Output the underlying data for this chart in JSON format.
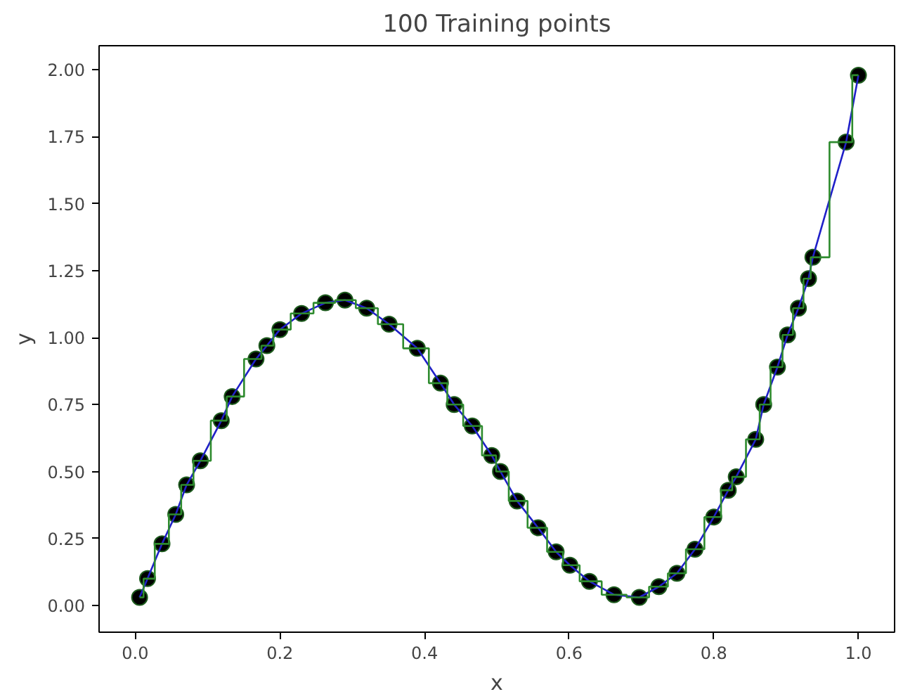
{
  "chart_data": {
    "type": "scatter",
    "title": "100 Training points",
    "xlabel": "x",
    "ylabel": "y",
    "xlim": [
      -0.05,
      1.05
    ],
    "ylim": [
      -0.1,
      2.09
    ],
    "xticks": [
      {
        "value": 0,
        "label": "0.0"
      },
      0.2,
      0.4,
      0.6,
      0.8,
      {
        "value": 1,
        "label": "1.0"
      }
    ],
    "yticks": [
      {
        "value": 0,
        "label": "0.00"
      },
      0.25,
      {
        "value": 0.5,
        "label": "0.50"
      },
      0.75,
      {
        "value": 1,
        "label": "1.00"
      },
      1.25,
      {
        "value": 1.5,
        "label": "1.50"
      },
      1.75,
      {
        "value": 2,
        "label": "2.00"
      }
    ],
    "grid": false,
    "x": [
      0.006,
      0.017,
      0.037,
      0.056,
      0.071,
      0.09,
      0.119,
      0.134,
      0.167,
      0.182,
      0.2,
      0.23,
      0.263,
      0.29,
      0.32,
      0.351,
      0.39,
      0.422,
      0.441,
      0.466,
      0.493,
      0.505,
      0.528,
      0.557,
      0.582,
      0.601,
      0.628,
      0.662,
      0.697,
      0.724,
      0.749,
      0.774,
      0.8,
      0.82,
      0.831,
      0.858,
      0.869,
      0.888,
      0.902,
      0.917,
      0.931,
      0.937,
      0.983,
      1.0
    ],
    "series": [
      {
        "marker": "circle",
        "color": "#000000",
        "values": [
          0.03,
          0.1,
          0.23,
          0.34,
          0.45,
          0.54,
          0.69,
          0.78,
          0.92,
          0.97,
          1.03,
          1.09,
          1.13,
          1.14,
          1.11,
          1.05,
          0.96,
          0.83,
          0.75,
          0.67,
          0.56,
          0.5,
          0.39,
          0.29,
          0.2,
          0.15,
          0.09,
          0.04,
          0.03,
          0.07,
          0.12,
          0.21,
          0.33,
          0.43,
          0.48,
          0.62,
          0.75,
          0.89,
          1.01,
          1.11,
          1.22,
          1.3,
          1.73,
          1.98
        ]
      },
      {
        "type": "line",
        "color": "#2020c8",
        "values": [
          0.03,
          0.1,
          0.23,
          0.34,
          0.45,
          0.54,
          0.69,
          0.78,
          0.92,
          0.97,
          1.03,
          1.09,
          1.13,
          1.14,
          1.11,
          1.05,
          0.96,
          0.83,
          0.75,
          0.67,
          0.56,
          0.5,
          0.39,
          0.29,
          0.2,
          0.15,
          0.09,
          0.04,
          0.03,
          0.07,
          0.12,
          0.21,
          0.33,
          0.43,
          0.48,
          0.62,
          0.75,
          0.89,
          1.01,
          1.11,
          1.22,
          1.3,
          1.73,
          1.98
        ]
      },
      {
        "type": "step",
        "color": "#2e8b2e",
        "values": [
          0.03,
          0.1,
          0.23,
          0.34,
          0.45,
          0.54,
          0.69,
          0.78,
          0.92,
          0.97,
          1.03,
          1.09,
          1.13,
          1.14,
          1.11,
          1.05,
          0.96,
          0.83,
          0.75,
          0.67,
          0.56,
          0.5,
          0.39,
          0.29,
          0.2,
          0.15,
          0.09,
          0.04,
          0.03,
          0.07,
          0.12,
          0.21,
          0.33,
          0.43,
          0.48,
          0.62,
          0.75,
          0.89,
          1.01,
          1.11,
          1.22,
          1.3,
          1.73,
          1.98
        ]
      }
    ]
  }
}
